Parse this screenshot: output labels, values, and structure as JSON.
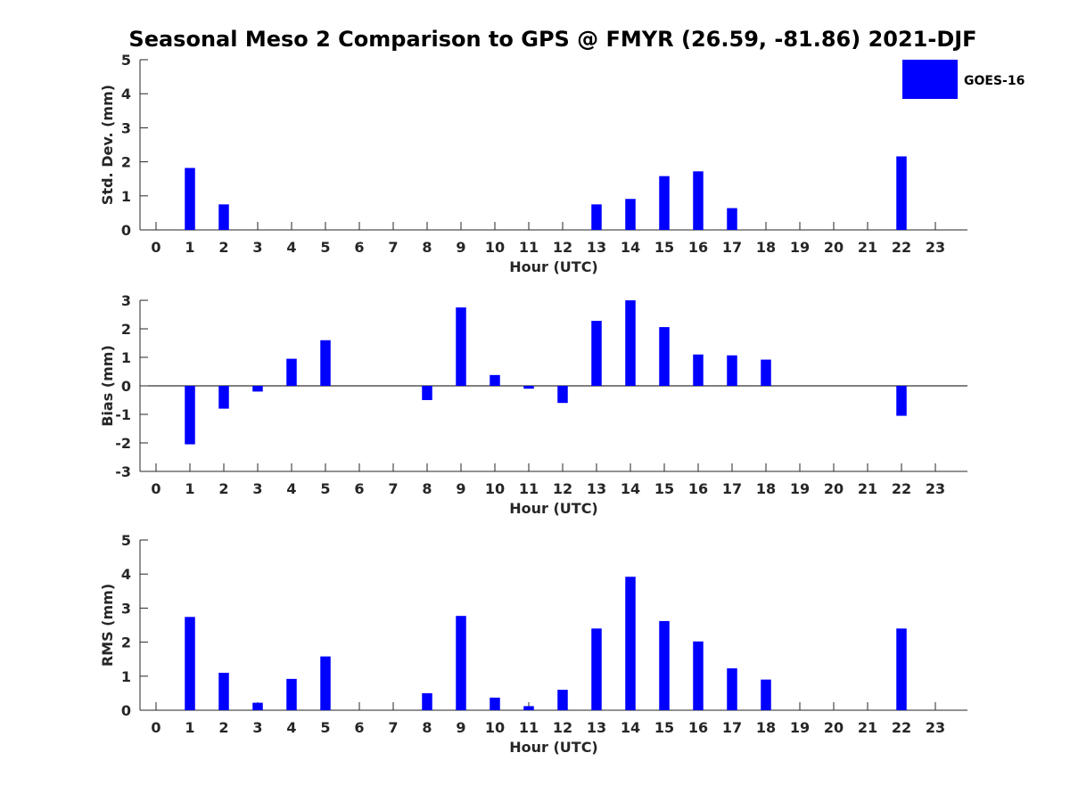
{
  "title": "Seasonal Meso 2 Comparison to GPS @ FMYR (26.59, -81.86) 2021-DJF",
  "legend": {
    "label": "GOES-16",
    "color": "#0000ff",
    "placement": "top-right"
  },
  "chart_data": [
    {
      "type": "bar",
      "ylabel": "Std. Dev. (mm)",
      "xlabel": "Hour (UTC)",
      "ylim": [
        0,
        5
      ],
      "yticks": [
        0,
        1,
        2,
        3,
        4,
        5
      ],
      "categories": [
        "0",
        "1",
        "2",
        "3",
        "4",
        "5",
        "6",
        "7",
        "8",
        "9",
        "10",
        "11",
        "12",
        "13",
        "14",
        "15",
        "16",
        "17",
        "18",
        "19",
        "20",
        "21",
        "22",
        "23"
      ],
      "series": [
        {
          "name": "GOES-16",
          "values": [
            null,
            1.82,
            0.75,
            null,
            null,
            null,
            null,
            null,
            null,
            null,
            null,
            null,
            null,
            0.75,
            0.91,
            1.58,
            1.72,
            0.64,
            null,
            null,
            null,
            null,
            2.16,
            null
          ]
        }
      ]
    },
    {
      "type": "bar",
      "ylabel": "Bias (mm)",
      "xlabel": "Hour (UTC)",
      "ylim": [
        -3,
        3
      ],
      "yticks": [
        -3,
        -2,
        -1,
        0,
        1,
        2,
        3
      ],
      "categories": [
        "0",
        "1",
        "2",
        "3",
        "4",
        "5",
        "6",
        "7",
        "8",
        "9",
        "10",
        "11",
        "12",
        "13",
        "14",
        "15",
        "16",
        "17",
        "18",
        "19",
        "20",
        "21",
        "22",
        "23"
      ],
      "series": [
        {
          "name": "GOES-16",
          "values": [
            null,
            -2.05,
            -0.8,
            -0.2,
            0.95,
            1.6,
            null,
            null,
            -0.5,
            2.75,
            0.38,
            -0.1,
            -0.6,
            2.28,
            3.0,
            2.06,
            1.1,
            1.07,
            0.92,
            null,
            null,
            null,
            -1.05,
            null
          ]
        }
      ]
    },
    {
      "type": "bar",
      "ylabel": "RMS (mm)",
      "xlabel": "Hour (UTC)",
      "ylim": [
        0,
        5
      ],
      "yticks": [
        0,
        1,
        2,
        3,
        4,
        5
      ],
      "categories": [
        "0",
        "1",
        "2",
        "3",
        "4",
        "5",
        "6",
        "7",
        "8",
        "9",
        "10",
        "11",
        "12",
        "13",
        "14",
        "15",
        "16",
        "17",
        "18",
        "19",
        "20",
        "21",
        "22",
        "23"
      ],
      "series": [
        {
          "name": "GOES-16",
          "values": [
            null,
            2.74,
            1.1,
            0.22,
            0.92,
            1.58,
            null,
            null,
            0.5,
            2.77,
            0.37,
            0.12,
            0.6,
            2.4,
            3.92,
            2.62,
            2.02,
            1.23,
            0.9,
            null,
            null,
            null,
            2.4,
            null
          ]
        }
      ]
    }
  ]
}
